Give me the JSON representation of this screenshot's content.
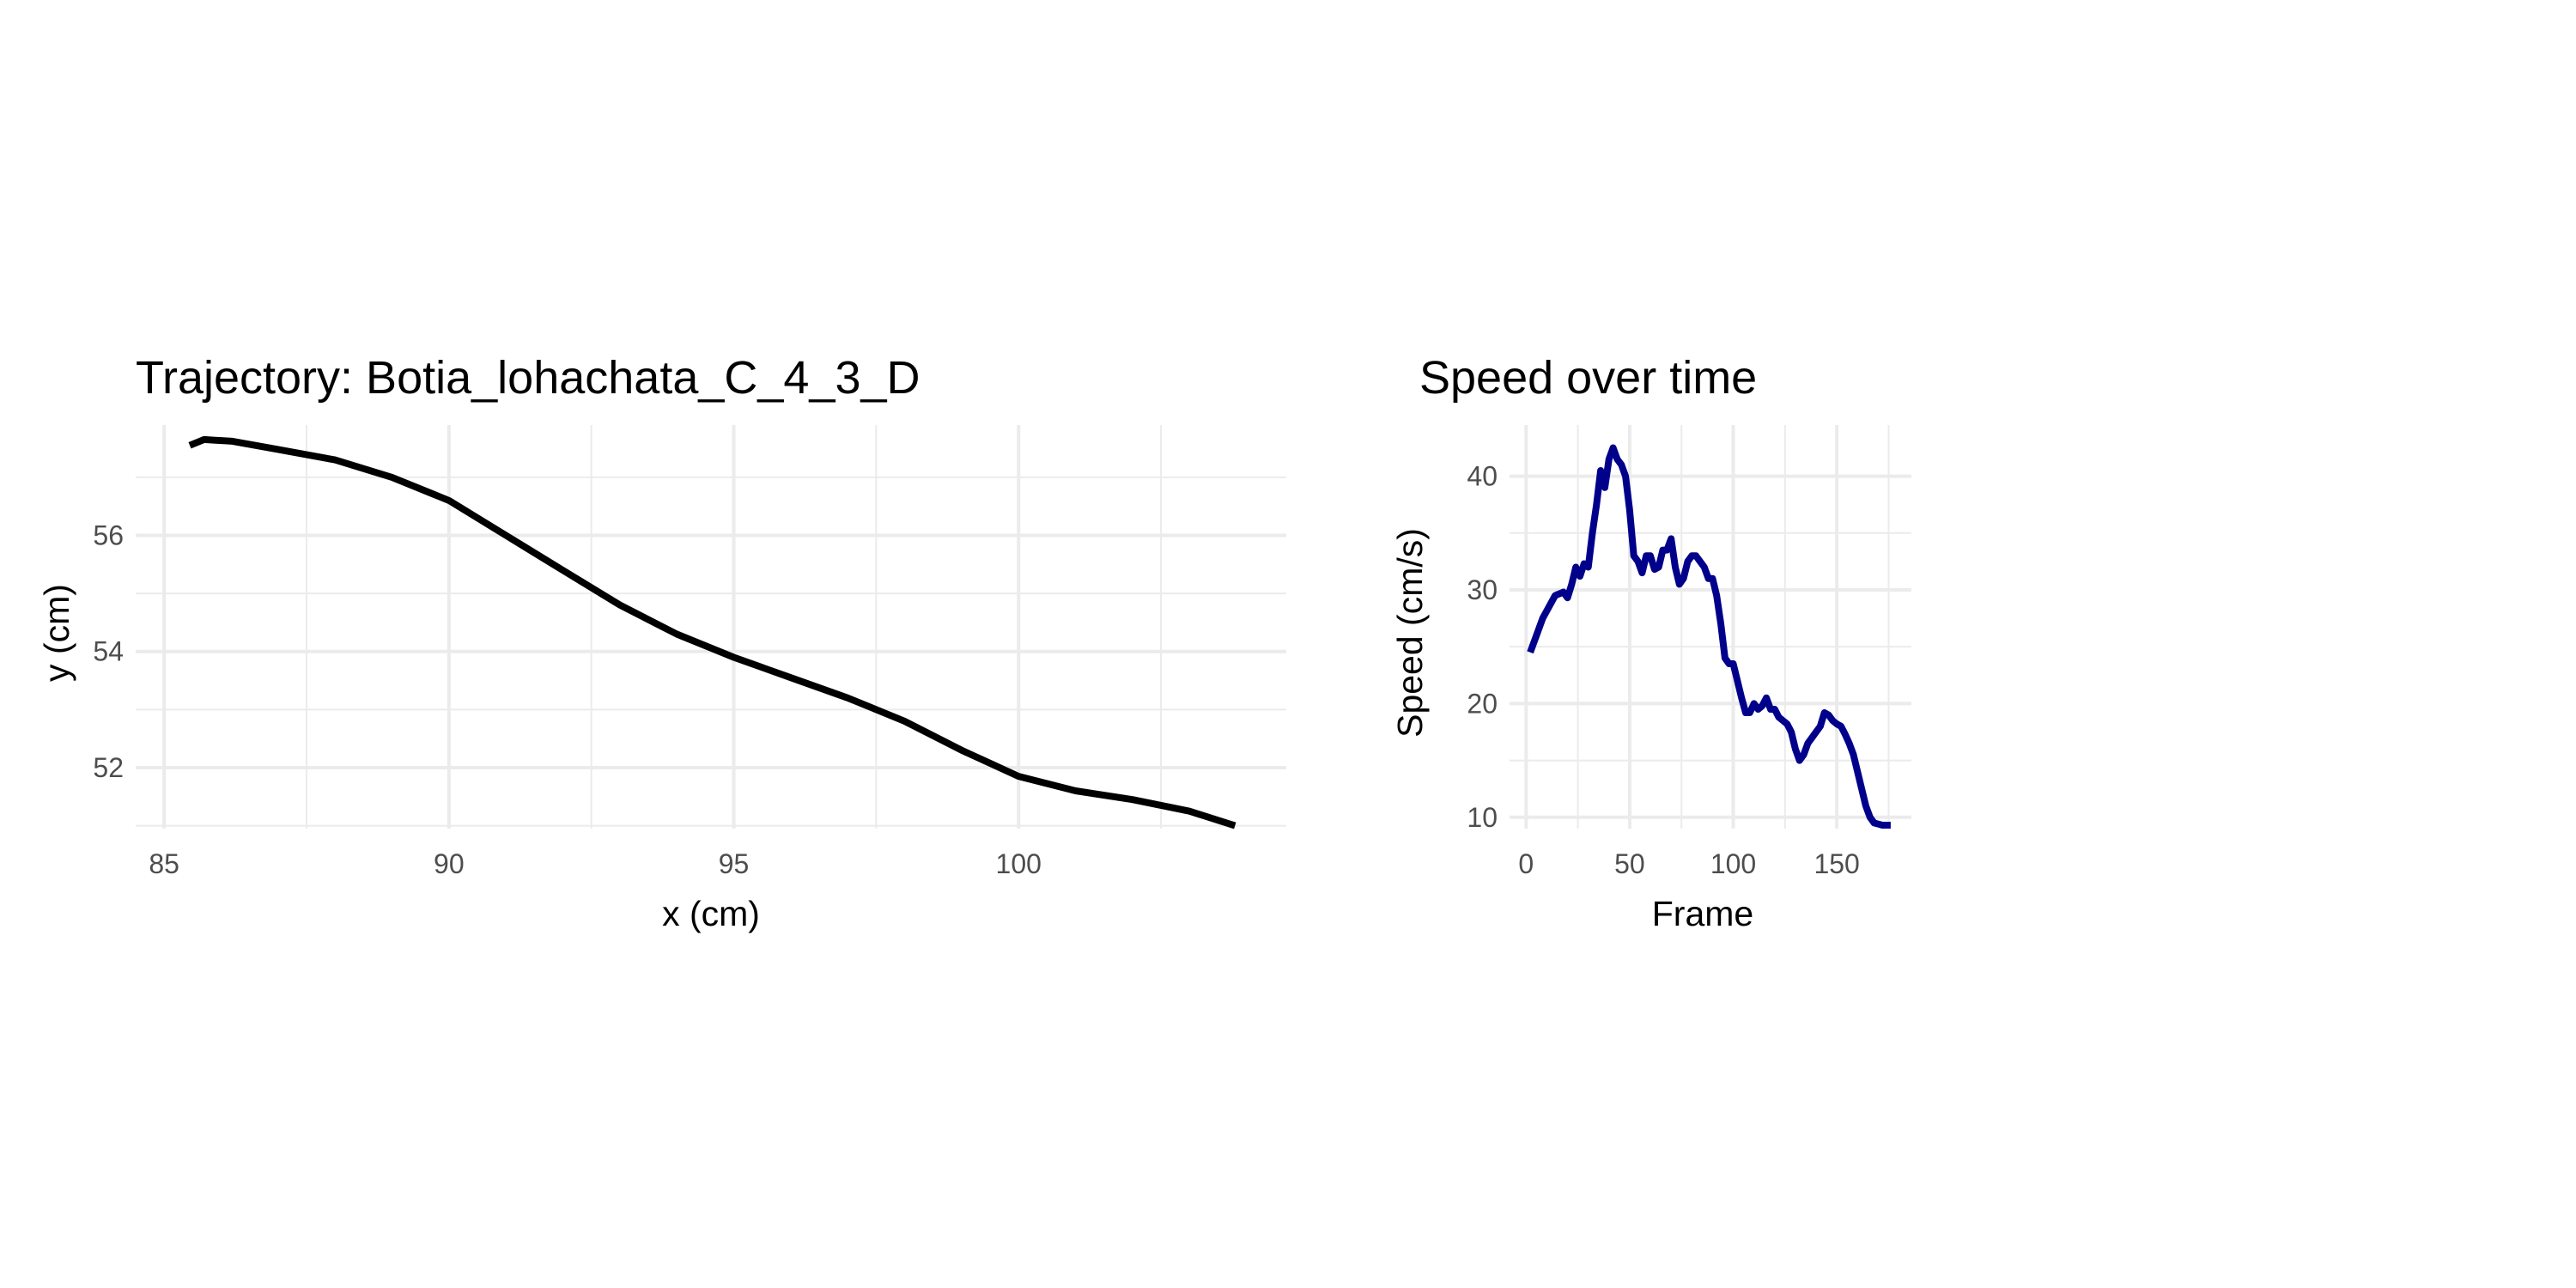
{
  "chart_data": [
    {
      "type": "line",
      "title": "Trajectory: Botia_lohachata_C_4_3_D",
      "xlabel": "x (cm)",
      "ylabel": "y (cm)",
      "xlim": [
        84.5,
        104.7
      ],
      "ylim": [
        50.95,
        57.9
      ],
      "xticks": [
        85,
        90,
        95,
        100
      ],
      "xtick_labels": [
        "85",
        "90",
        "95",
        "100"
      ],
      "yticks": [
        52,
        54,
        56
      ],
      "ytick_labels": [
        "52",
        "54",
        "56"
      ],
      "grid": true,
      "legend": "none",
      "series": [
        {
          "color": "#000000",
          "x": [
            85.45,
            85.7,
            86.2,
            87.0,
            88.0,
            89.0,
            90.0,
            91.0,
            92.0,
            93.0,
            94.0,
            95.0,
            96.0,
            97.0,
            98.0,
            99.0,
            100.0,
            101.0,
            102.0,
            103.0,
            103.8
          ],
          "y": [
            57.55,
            57.65,
            57.62,
            57.48,
            57.3,
            57.0,
            56.6,
            56.0,
            55.4,
            54.8,
            54.3,
            53.9,
            53.55,
            53.2,
            52.8,
            52.3,
            51.85,
            51.6,
            51.45,
            51.25,
            51.0
          ]
        }
      ]
    },
    {
      "type": "line",
      "title": "Speed over time",
      "xlabel": "Frame",
      "ylabel": "Speed (cm/s)",
      "xlim": [
        -8,
        186
      ],
      "ylim": [
        9,
        44.5
      ],
      "xticks": [
        0,
        50,
        100,
        150
      ],
      "xtick_labels": [
        "0",
        "50",
        "100",
        "150"
      ],
      "yticks": [
        10,
        20,
        30,
        40
      ],
      "ytick_labels": [
        "10",
        "20",
        "30",
        "40"
      ],
      "grid": true,
      "legend": "none",
      "series": [
        {
          "color": "#00008B",
          "x": [
            2,
            8,
            14,
            18,
            20,
            22,
            24,
            26,
            28,
            30,
            32,
            34,
            36,
            38,
            40,
            42,
            44,
            46,
            48,
            50,
            52,
            54,
            56,
            58,
            60,
            62,
            64,
            66,
            68,
            70,
            72,
            74,
            76,
            78,
            80,
            82,
            84,
            86,
            88,
            90,
            92,
            94,
            96,
            98,
            100,
            102,
            104,
            106,
            108,
            110,
            112,
            114,
            116,
            118,
            120,
            122,
            124,
            126,
            128,
            130,
            132,
            134,
            136,
            138,
            140,
            142,
            144,
            146,
            148,
            150,
            152,
            154,
            156,
            158,
            160,
            162,
            164,
            166,
            168,
            170,
            172,
            174,
            176
          ],
          "y": [
            24.5,
            27.5,
            29.5,
            29.8,
            29.3,
            30.5,
            32,
            31.2,
            32.3,
            32,
            35,
            37.5,
            40.5,
            39,
            41.5,
            42.5,
            41.5,
            41,
            40,
            37,
            33,
            32.5,
            31.5,
            33,
            33,
            31.8,
            32,
            33.5,
            33.5,
            34.5,
            32,
            30.5,
            31,
            32.5,
            33,
            33,
            32.5,
            32,
            31,
            31,
            29.5,
            27,
            24,
            23.5,
            23.5,
            22,
            20.5,
            19.2,
            19.2,
            20,
            19.5,
            19.8,
            20.5,
            19.5,
            19.5,
            18.8,
            18.5,
            18.2,
            17.5,
            16,
            15,
            15.5,
            16.5,
            17,
            17.5,
            18,
            19.2,
            19,
            18.5,
            18.2,
            18,
            17.3,
            16.5,
            15.5,
            14,
            12.5,
            11,
            10,
            9.5,
            9.4,
            9.3,
            9.3,
            9.3
          ]
        }
      ]
    }
  ]
}
